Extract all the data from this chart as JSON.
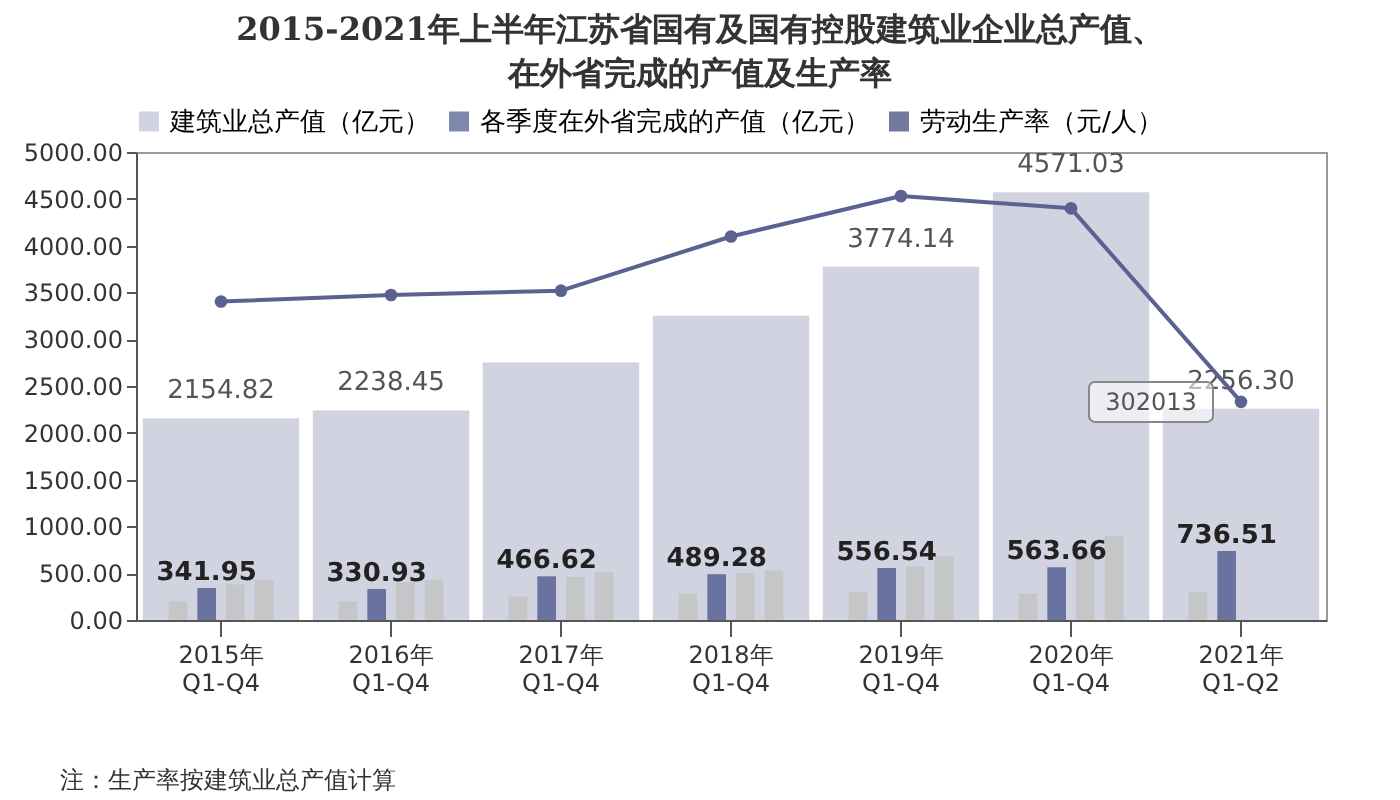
{
  "chart_data": {
    "type": "bar",
    "title": "2015-2021年上半年江苏省国有及国有控股建筑业企业总产值、在外省完成的产值及生产率",
    "categories": [
      "2015年 Q1-Q4",
      "2016年 Q1-Q4",
      "2017年 Q1-Q4",
      "2018年 Q1-Q4",
      "2019年 Q1-Q4",
      "2020年 Q1-Q4",
      "2021年 Q1-Q2"
    ],
    "series": [
      {
        "name": "建筑业总产值（亿元）",
        "color": "#c9cbdc",
        "values": [
          2154.82,
          2238.45,
          2750,
          3250,
          3774.14,
          4571.03,
          2256.3
        ],
        "value_labels": [
          "2154.82",
          "2238.45",
          null,
          null,
          "3774.14",
          "4571.03",
          "2256.30"
        ]
      },
      {
        "color": "#c4c6c8",
        "values": [
          200,
          200,
          250,
          280,
          300,
          280,
          300
        ]
      },
      {
        "name": "各季度在外省完成的产值（亿元）",
        "color": "#6a72a0",
        "values": [
          341.95,
          330.93,
          466.62,
          489.28,
          556.54,
          563.66,
          736.51
        ],
        "value_labels": [
          "341.95",
          "330.93",
          "466.62",
          "489.28",
          "556.54",
          "563.66",
          "736.51"
        ]
      },
      {
        "color": "#c4c6c8",
        "values": [
          380,
          400,
          460,
          500,
          570,
          720,
          null
        ]
      },
      {
        "color": "#c4c6c8",
        "values": [
          430,
          430,
          510,
          530,
          680,
          900,
          null
        ]
      },
      {
        "name": "劳动生产率（元/人）",
        "type": "line",
        "axis": "y2",
        "color": "#5b6190",
        "values": [
          441000,
          450000,
          456000,
          531000,
          587000,
          570000,
          302013
        ],
        "value_labels": [
          null,
          null,
          null,
          null,
          null,
          null,
          "302013"
        ]
      }
    ],
    "ylim": [
      0,
      5000
    ],
    "yticks": [
      {
        "value": 0,
        "label": "0.00"
      },
      {
        "value": 500,
        "label": "500.00"
      },
      {
        "value": 1000,
        "label": "1000.00"
      },
      {
        "value": 1500,
        "label": "1500.00"
      },
      {
        "value": 2000,
        "label": "2000.00"
      },
      {
        "value": 2500,
        "label": "2500.00"
      },
      {
        "value": 3000,
        "label": "3000.00"
      },
      {
        "value": 3500,
        "label": "3500.00"
      },
      {
        "value": 4000,
        "label": "4000.00"
      },
      {
        "value": 4500,
        "label": "4500.00"
      },
      {
        "value": 5000,
        "label": "5000.00"
      }
    ],
    "y2lim": [
      0,
      648000
    ],
    "tick_labels": "xy",
    "legend": "top",
    "marker": "circle",
    "line_style": "solid",
    "annotations": [
      "注：生产率按建筑业总产值计算"
    ]
  }
}
